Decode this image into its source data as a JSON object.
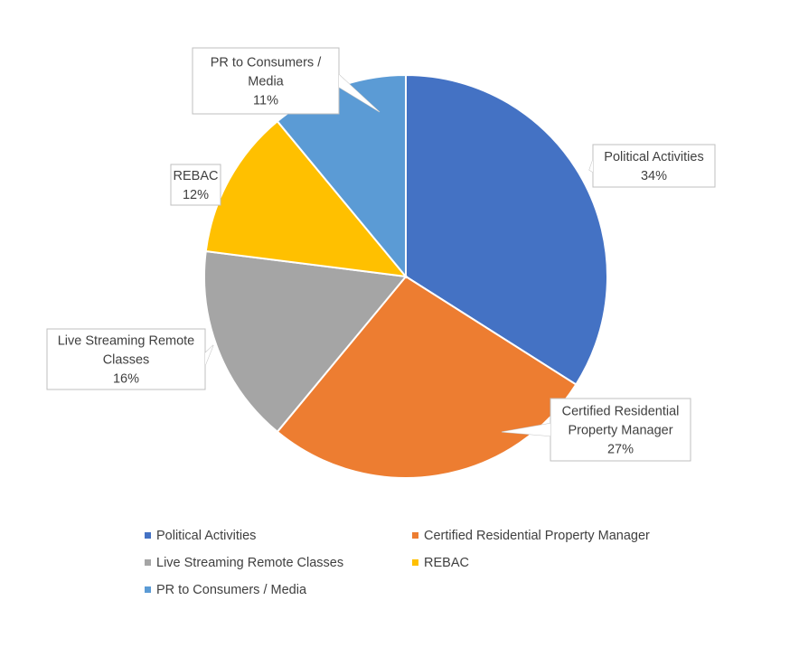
{
  "chart_data": {
    "type": "pie",
    "title": "",
    "start_angle_deg": 0,
    "direction": "clockwise",
    "legend_position": "bottom",
    "slices": [
      {
        "label": "Political Activities",
        "label_lines": [
          "Political Activities"
        ],
        "value": 34,
        "value_label": "34%",
        "color": "#4472C4"
      },
      {
        "label": "Certified Residential Property Manager",
        "label_lines": [
          "Certified Residential",
          "Property Manager"
        ],
        "value": 27,
        "value_label": "27%",
        "color": "#ED7D31"
      },
      {
        "label": "Live Streaming Remote Classes",
        "label_lines": [
          "Live Streaming Remote",
          "Classes"
        ],
        "value": 16,
        "value_label": "16%",
        "color": "#A5A5A5"
      },
      {
        "label": "REBAC",
        "label_lines": [
          "REBAC"
        ],
        "value": 12,
        "value_label": "12%",
        "color": "#FFC000"
      },
      {
        "label": "PR to Consumers / Media",
        "label_lines": [
          "PR to Consumers /",
          "Media"
        ],
        "value": 11,
        "value_label": "11%",
        "color": "#5B9BD5"
      }
    ]
  }
}
